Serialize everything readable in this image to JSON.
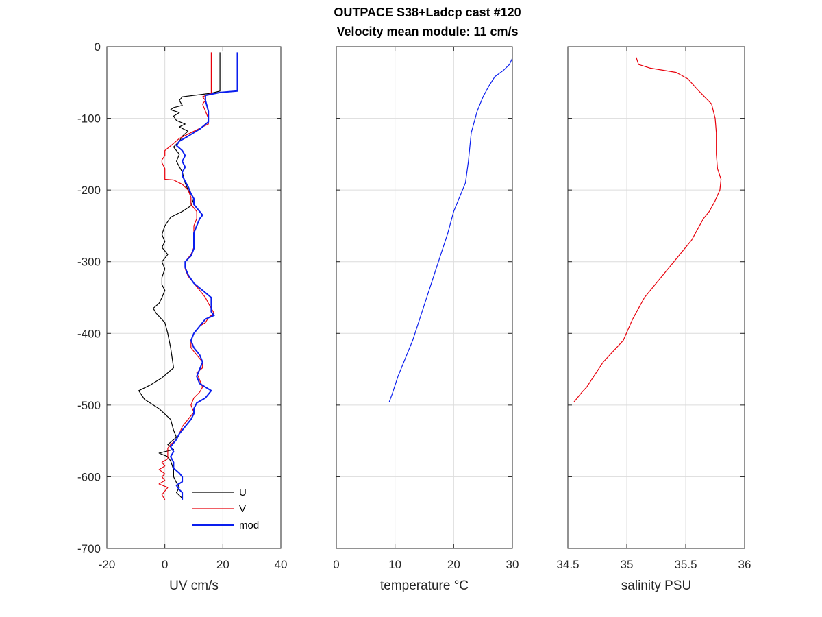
{
  "figure": {
    "title_line1": "OUTPACE S38+Ladcp cast #120",
    "title_line2": "Velocity mean module:  11 cm/s"
  },
  "chart_data": [
    {
      "type": "line",
      "xlabel": "UV cm/s",
      "ylabel": "",
      "xlim": [
        -20,
        40
      ],
      "ylim": [
        -700,
        0
      ],
      "xticks": [
        -20,
        0,
        20,
        40
      ],
      "yticks": [
        0,
        -100,
        -200,
        -300,
        -400,
        -500,
        -600,
        -700
      ],
      "grid": true,
      "legend": "bottom-right",
      "series": [
        {
          "name": "U",
          "color": "#000000",
          "width": 1.2,
          "points": [
            [
              19,
              -8
            ],
            [
              19,
              -62
            ],
            [
              16,
              -65
            ],
            [
              6,
              -70
            ],
            [
              5,
              -75
            ],
            [
              6,
              -82
            ],
            [
              3,
              -85
            ],
            [
              2,
              -88
            ],
            [
              5,
              -92
            ],
            [
              3,
              -97
            ],
            [
              4,
              -103
            ],
            [
              7,
              -108
            ],
            [
              5,
              -112
            ],
            [
              8,
              -118
            ],
            [
              6,
              -125
            ],
            [
              5,
              -132
            ],
            [
              3,
              -140
            ],
            [
              5,
              -150
            ],
            [
              4,
              -160
            ],
            [
              6,
              -175
            ],
            [
              7,
              -190
            ],
            [
              8,
              -200
            ],
            [
              10,
              -212
            ],
            [
              9,
              -222
            ],
            [
              6,
              -230
            ],
            [
              2,
              -238
            ],
            [
              0,
              -250
            ],
            [
              -1,
              -262
            ],
            [
              0,
              -272
            ],
            [
              -1,
              -280
            ],
            [
              1,
              -290
            ],
            [
              -1,
              -300
            ],
            [
              0,
              -310
            ],
            [
              -1,
              -322
            ],
            [
              -1,
              -332
            ],
            [
              0,
              -340
            ],
            [
              -1,
              -350
            ],
            [
              -2,
              -358
            ],
            [
              -4,
              -365
            ],
            [
              -3,
              -372
            ],
            [
              0,
              -385
            ],
            [
              1,
              -400
            ],
            [
              2,
              -420
            ],
            [
              3,
              -448
            ],
            [
              -1,
              -462
            ],
            [
              -5,
              -472
            ],
            [
              -9,
              -480
            ],
            [
              -7,
              -492
            ],
            [
              -2,
              -505
            ],
            [
              2,
              -520
            ],
            [
              3,
              -535
            ],
            [
              4,
              -545
            ],
            [
              1,
              -555
            ],
            [
              3,
              -562
            ],
            [
              -2,
              -567
            ],
            [
              1,
              -572
            ],
            [
              2,
              -578
            ],
            [
              3,
              -590
            ],
            [
              3,
              -600
            ],
            [
              4,
              -608
            ],
            [
              5,
              -615
            ],
            [
              4,
              -622
            ],
            [
              6,
              -630
            ]
          ]
        },
        {
          "name": "V",
          "color": "#e8000b",
          "width": 1.2,
          "points": [
            [
              16,
              -8
            ],
            [
              16,
              -65
            ],
            [
              13,
              -70
            ],
            [
              14,
              -75
            ],
            [
              13,
              -80
            ],
            [
              14,
              -90
            ],
            [
              15,
              -100
            ],
            [
              15,
              -108
            ],
            [
              10,
              -118
            ],
            [
              5,
              -128
            ],
            [
              3,
              -135
            ],
            [
              0,
              -145
            ],
            [
              0,
              -152
            ],
            [
              -1,
              -158
            ],
            [
              -1,
              -162
            ],
            [
              0,
              -170
            ],
            [
              0,
              -178
            ],
            [
              0,
              -185
            ],
            [
              3,
              -186
            ],
            [
              6,
              -192
            ],
            [
              8,
              -200
            ],
            [
              9,
              -210
            ],
            [
              9,
              -220
            ],
            [
              11,
              -230
            ],
            [
              11,
              -240
            ],
            [
              10,
              -250
            ],
            [
              10,
              -260
            ],
            [
              10,
              -270
            ],
            [
              10,
              -280
            ],
            [
              9,
              -290
            ],
            [
              7,
              -300
            ],
            [
              7,
              -310
            ],
            [
              8,
              -320
            ],
            [
              10,
              -330
            ],
            [
              12,
              -340
            ],
            [
              14,
              -350
            ],
            [
              15,
              -358
            ],
            [
              16,
              -365
            ],
            [
              17,
              -372
            ],
            [
              15,
              -378
            ],
            [
              14,
              -385
            ],
            [
              12,
              -390
            ],
            [
              11,
              -395
            ],
            [
              10,
              -400
            ],
            [
              9,
              -410
            ],
            [
              9,
              -420
            ],
            [
              11,
              -430
            ],
            [
              13,
              -440
            ],
            [
              13,
              -448
            ],
            [
              11,
              -455
            ],
            [
              12,
              -465
            ],
            [
              13,
              -475
            ],
            [
              12,
              -482
            ],
            [
              10,
              -490
            ],
            [
              9,
              -500
            ],
            [
              10,
              -510
            ],
            [
              8,
              -520
            ],
            [
              6,
              -530
            ],
            [
              5,
              -540
            ],
            [
              4,
              -548
            ],
            [
              2,
              -555
            ],
            [
              1,
              -560
            ],
            [
              1,
              -568
            ],
            [
              1,
              -575
            ],
            [
              -1,
              -580
            ],
            [
              0,
              -585
            ],
            [
              -2,
              -590
            ],
            [
              0,
              -596
            ],
            [
              -1,
              -600
            ],
            [
              0,
              -605
            ],
            [
              -2,
              -610
            ],
            [
              1,
              -615
            ],
            [
              0,
              -620
            ],
            [
              -1,
              -625
            ],
            [
              0,
              -632
            ]
          ]
        },
        {
          "name": "mod",
          "color": "#0a1eee",
          "width": 2,
          "points": [
            [
              25,
              -8
            ],
            [
              25,
              -62
            ],
            [
              19,
              -64
            ],
            [
              14,
              -68
            ],
            [
              14,
              -75
            ],
            [
              15,
              -90
            ],
            [
              15,
              -105
            ],
            [
              12,
              -115
            ],
            [
              8,
              -125
            ],
            [
              5,
              -132
            ],
            [
              4,
              -138
            ],
            [
              6,
              -145
            ],
            [
              7,
              -152
            ],
            [
              6,
              -160
            ],
            [
              7,
              -168
            ],
            [
              6,
              -175
            ],
            [
              6,
              -180
            ],
            [
              7,
              -188
            ],
            [
              8,
              -195
            ],
            [
              9,
              -205
            ],
            [
              10,
              -212
            ],
            [
              10,
              -220
            ],
            [
              12,
              -230
            ],
            [
              13,
              -235
            ],
            [
              12,
              -240
            ],
            [
              11,
              -250
            ],
            [
              10,
              -260
            ],
            [
              10,
              -270
            ],
            [
              10,
              -282
            ],
            [
              9,
              -292
            ],
            [
              7,
              -300
            ],
            [
              7,
              -308
            ],
            [
              8,
              -318
            ],
            [
              10,
              -330
            ],
            [
              13,
              -340
            ],
            [
              16,
              -350
            ],
            [
              16,
              -360
            ],
            [
              16,
              -370
            ],
            [
              17,
              -375
            ],
            [
              14,
              -380
            ],
            [
              12,
              -390
            ],
            [
              11,
              -395
            ],
            [
              10,
              -400
            ],
            [
              9,
              -410
            ],
            [
              10,
              -420
            ],
            [
              12,
              -430
            ],
            [
              13,
              -440
            ],
            [
              12,
              -450
            ],
            [
              11,
              -460
            ],
            [
              12,
              -470
            ],
            [
              14,
              -475
            ],
            [
              16,
              -480
            ],
            [
              14,
              -490
            ],
            [
              11,
              -497
            ],
            [
              10,
              -505
            ],
            [
              10,
              -512
            ],
            [
              9,
              -520
            ],
            [
              7,
              -530
            ],
            [
              5,
              -540
            ],
            [
              4,
              -548
            ],
            [
              2,
              -558
            ],
            [
              3,
              -565
            ],
            [
              2,
              -572
            ],
            [
              3,
              -580
            ],
            [
              3,
              -588
            ],
            [
              5,
              -595
            ],
            [
              6,
              -600
            ],
            [
              6,
              -607
            ],
            [
              4,
              -612
            ],
            [
              5,
              -618
            ],
            [
              6,
              -622
            ],
            [
              6,
              -632
            ]
          ]
        }
      ]
    },
    {
      "type": "line",
      "xlabel": "temperature °C",
      "ylabel": "",
      "xlim": [
        0,
        30
      ],
      "ylim": [
        -700,
        0
      ],
      "xticks": [
        0,
        10,
        20,
        30
      ],
      "yticks": [
        0,
        -100,
        -200,
        -300,
        -400,
        -500,
        -600,
        -700
      ],
      "grid": true,
      "series": [
        {
          "color": "#0a1eee",
          "width": 1.2,
          "points": [
            [
              30,
              -16
            ],
            [
              29.5,
              -25
            ],
            [
              28.5,
              -33
            ],
            [
              27,
              -42
            ],
            [
              26,
              -55
            ],
            [
              25,
              -70
            ],
            [
              24,
              -90
            ],
            [
              23,
              -120
            ],
            [
              22.5,
              -160
            ],
            [
              22,
              -190
            ],
            [
              21,
              -210
            ],
            [
              20,
              -230
            ],
            [
              19,
              -260
            ],
            [
              17,
              -310
            ],
            [
              15,
              -360
            ],
            [
              13,
              -410
            ],
            [
              11.5,
              -440
            ],
            [
              10.5,
              -460
            ],
            [
              9.5,
              -485
            ],
            [
              9,
              -496
            ]
          ]
        }
      ]
    },
    {
      "type": "line",
      "xlabel": "salinity PSU",
      "ylabel": "",
      "xlim": [
        34.5,
        36
      ],
      "ylim": [
        -700,
        0
      ],
      "xticks": [
        34.5,
        35,
        35.5,
        36
      ],
      "yticks": [
        0,
        -100,
        -200,
        -300,
        -400,
        -500,
        -600,
        -700
      ],
      "grid": true,
      "series": [
        {
          "color": "#e8000b",
          "width": 1.2,
          "points": [
            [
              35.08,
              -15
            ],
            [
              35.1,
              -25
            ],
            [
              35.2,
              -30
            ],
            [
              35.42,
              -36
            ],
            [
              35.52,
              -45
            ],
            [
              35.6,
              -60
            ],
            [
              35.72,
              -80
            ],
            [
              35.75,
              -100
            ],
            [
              35.76,
              -120
            ],
            [
              35.76,
              -150
            ],
            [
              35.77,
              -170
            ],
            [
              35.8,
              -185
            ],
            [
              35.79,
              -200
            ],
            [
              35.75,
              -215
            ],
            [
              35.7,
              -230
            ],
            [
              35.65,
              -240
            ],
            [
              35.6,
              -255
            ],
            [
              35.55,
              -270
            ],
            [
              35.45,
              -290
            ],
            [
              35.3,
              -320
            ],
            [
              35.15,
              -350
            ],
            [
              35.05,
              -380
            ],
            [
              34.97,
              -410
            ],
            [
              34.8,
              -440
            ],
            [
              34.72,
              -460
            ],
            [
              34.66,
              -475
            ],
            [
              34.62,
              -482
            ],
            [
              34.58,
              -490
            ],
            [
              34.55,
              -496
            ]
          ]
        }
      ]
    }
  ]
}
